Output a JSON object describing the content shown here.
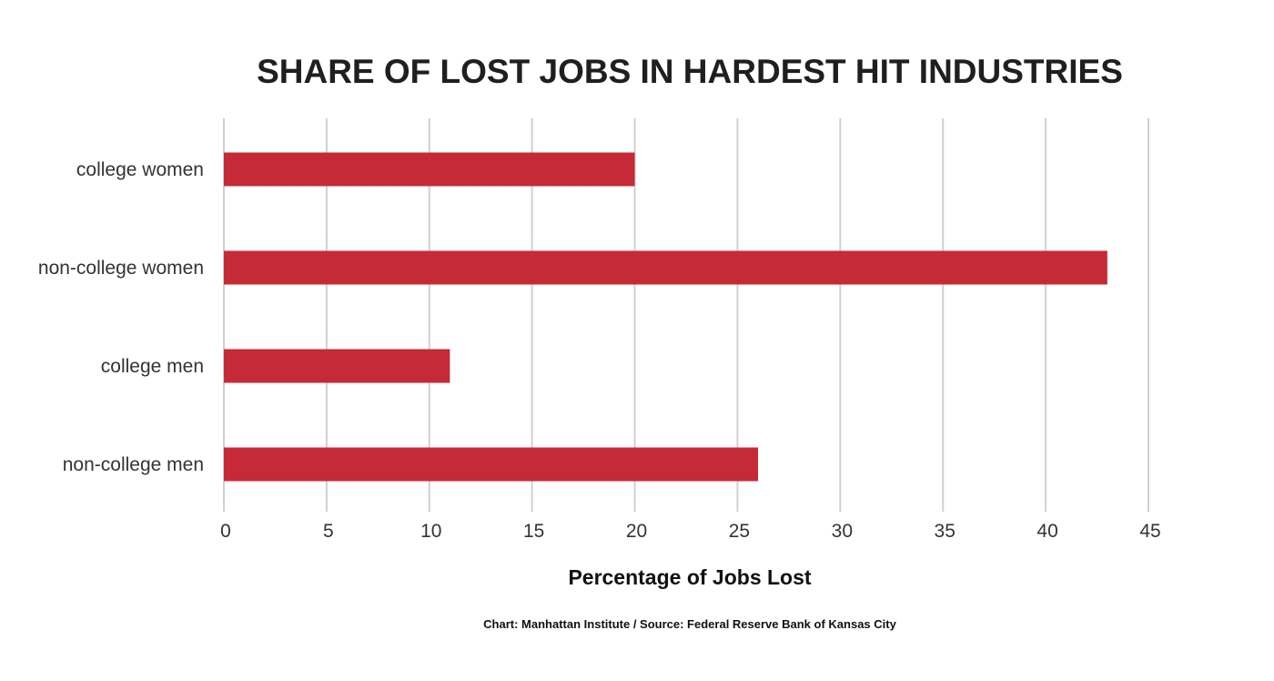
{
  "chart_data": {
    "type": "bar",
    "orientation": "horizontal",
    "title": "SHARE OF LOST JOBS IN HARDEST HIT INDUSTRIES",
    "xlabel": "Percentage of Jobs Lost",
    "ylabel": "",
    "categories": [
      "college women",
      "non-college women",
      "college men",
      "non-college men"
    ],
    "values": [
      20,
      43,
      11,
      26
    ],
    "xlim": [
      0,
      45
    ],
    "xticks": [
      0,
      5,
      10,
      15,
      20,
      25,
      30,
      35,
      40,
      45
    ],
    "grid": true,
    "legend": "none",
    "bar_color": "#c62a36",
    "source": "Chart: Manhattan Institute / Source: Federal Reserve Bank of Kansas City"
  }
}
